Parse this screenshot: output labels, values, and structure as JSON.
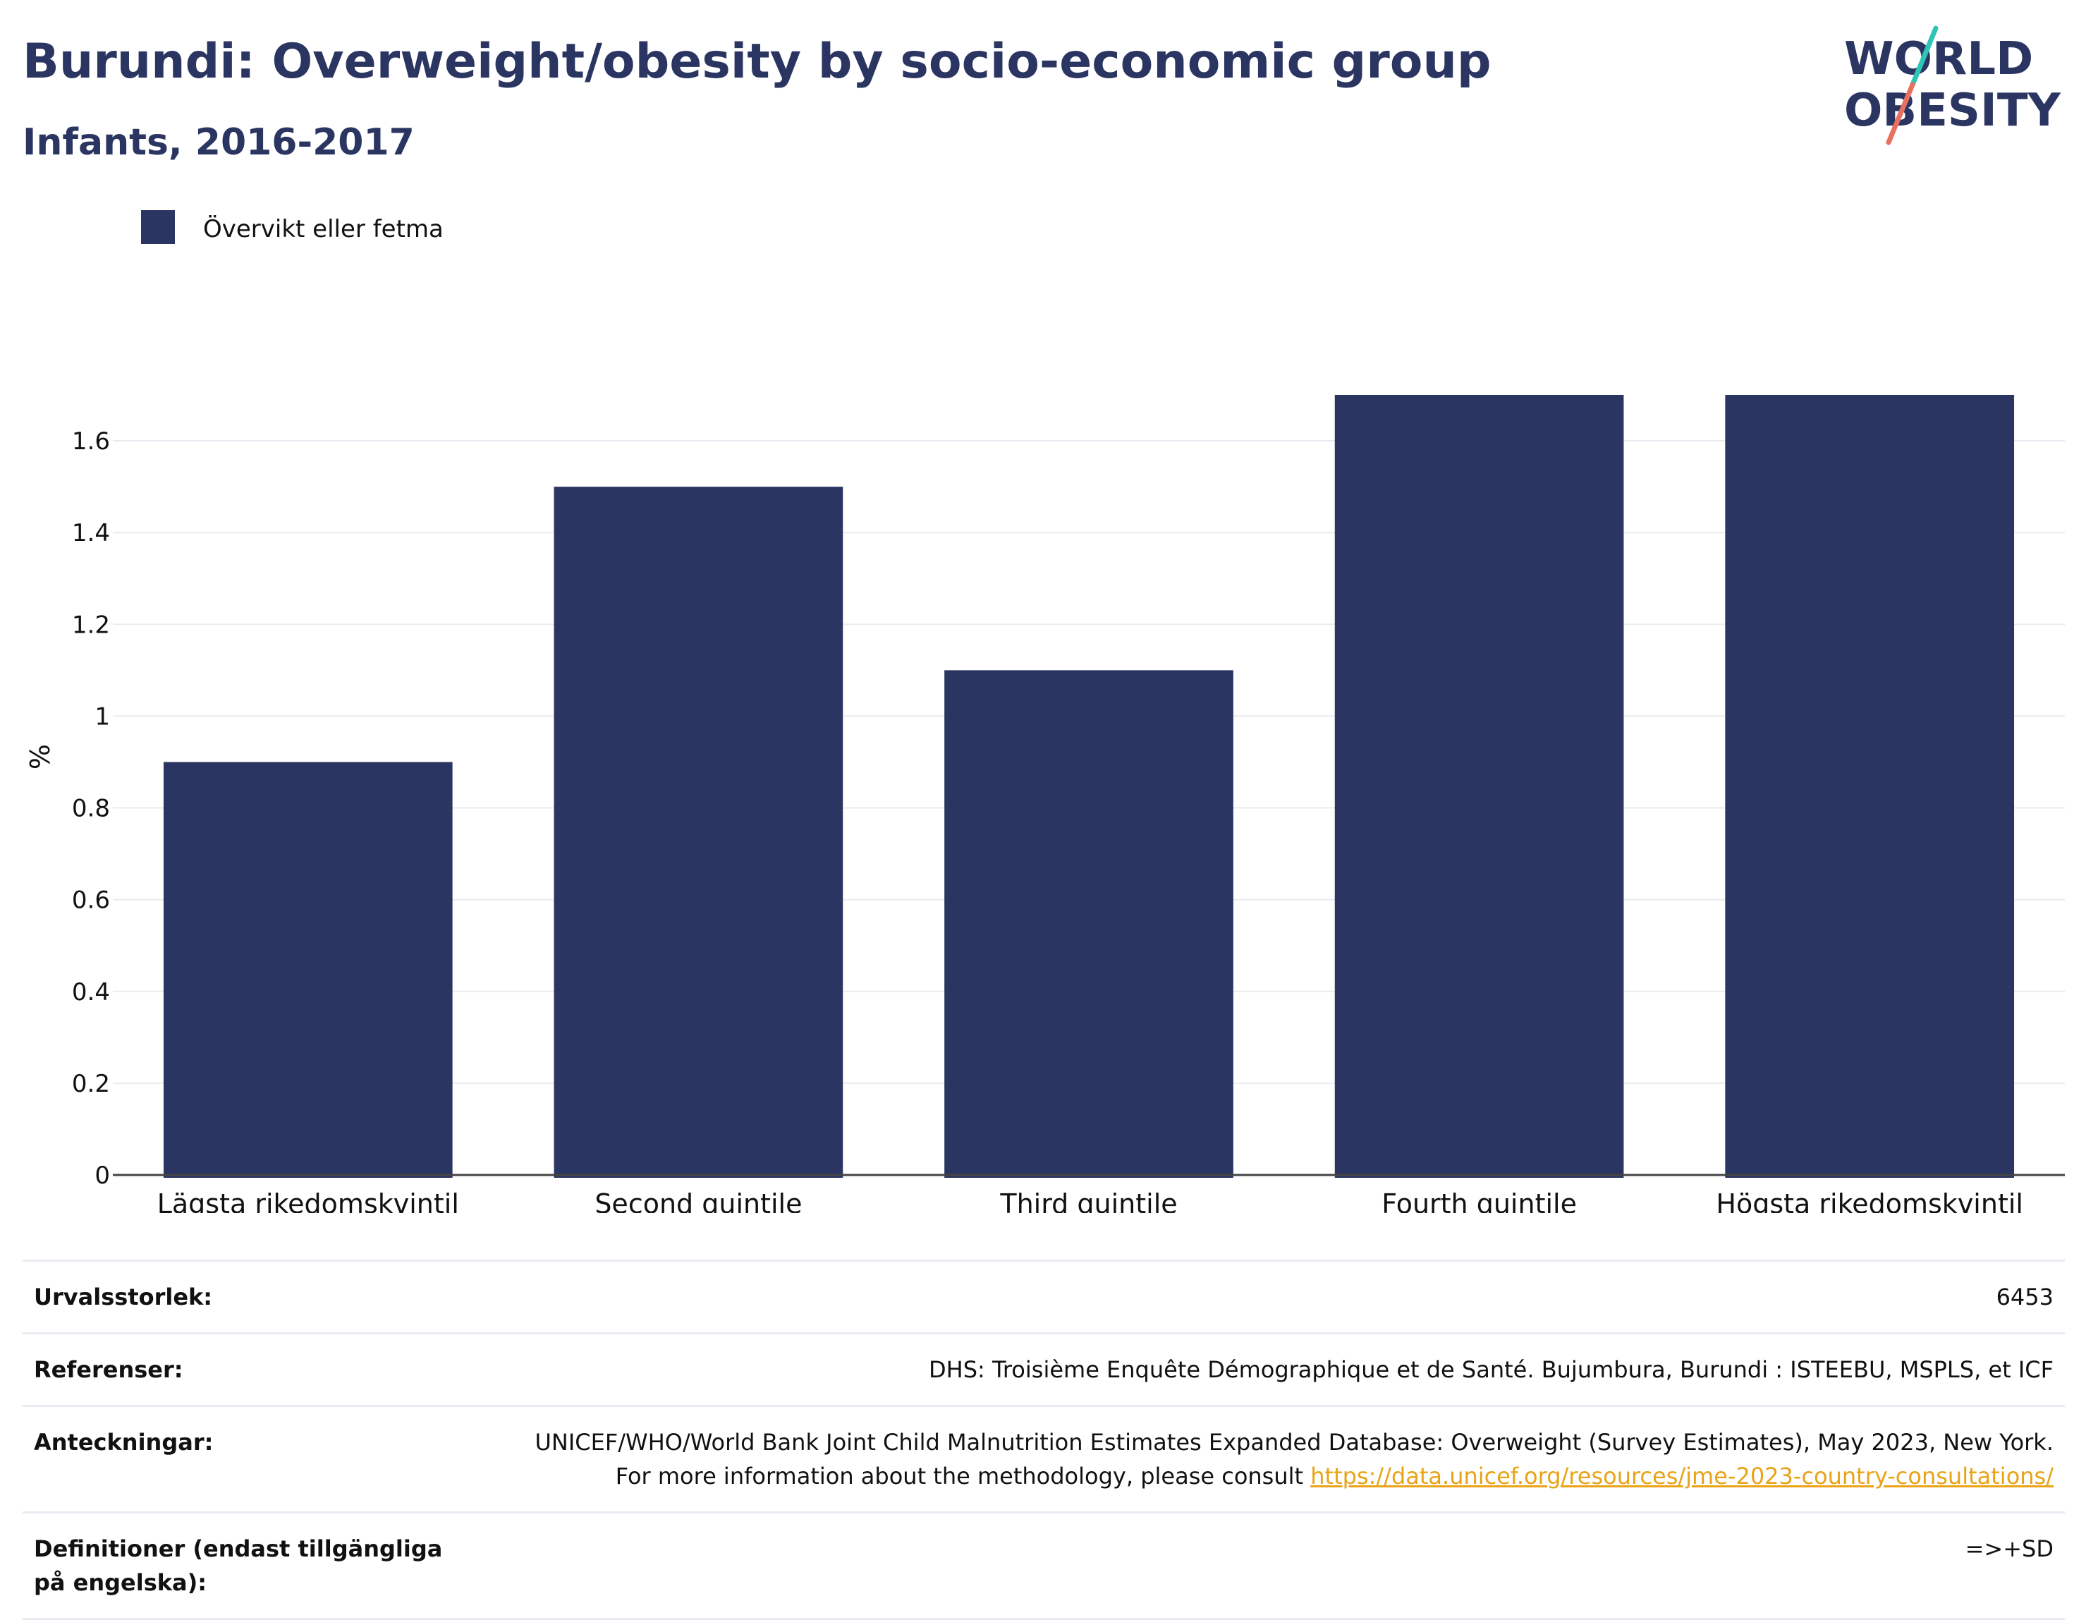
{
  "header": {
    "title": "Burundi: Overweight/obesity by socio-economic group",
    "subtitle": "Infants, 2016-2017"
  },
  "logo": {
    "line1": "WORLD",
    "line2": "OBESITY",
    "slash_colors": [
      "#2ec4b6",
      "#e8705f"
    ]
  },
  "colors": {
    "bar": "#2b3562",
    "text": "#2b3562",
    "grid": "#e9ebf0",
    "link": "#e8a317"
  },
  "chart_data": {
    "type": "bar",
    "categories": [
      "Lägsta rikedomskvintil",
      "Second quintile",
      "Third quintile",
      "Fourth quintile",
      "Högsta rikedomskvintil"
    ],
    "series": [
      {
        "name": "Övervikt eller fetma",
        "values": [
          0.9,
          1.5,
          1.1,
          1.7,
          1.7
        ]
      }
    ],
    "ylabel": "%",
    "xlabel": "",
    "ylim": [
      0,
      1.7
    ],
    "yticks": [
      "0",
      "0.2",
      "0.4",
      "0.6",
      "0.8",
      "1",
      "1.2",
      "1.4",
      "1.6"
    ],
    "grid": true,
    "legend": "top-left"
  },
  "info": {
    "sample_size": {
      "label": "Urvalsstorlek:",
      "value": "6453"
    },
    "references": {
      "label": "Referenser:",
      "value": "DHS: Troisième Enquête Démographique et de Santé. Bujumbura, Burundi : ISTEEBU, MSPLS, et ICF"
    },
    "notes": {
      "label": "Anteckningar:",
      "text": "UNICEF/WHO/World Bank Joint Child Malnutrition Estimates Expanded Database: Overweight (Survey Estimates), May 2023, New York. For more information about the methodology, please consult ",
      "link": "https://data.unicef.org/resources/jme-2023-country-consultations/"
    },
    "definitions": {
      "label": "Definitioner (endast tillgängliga på engelska):",
      "value": "=>+SD"
    }
  }
}
